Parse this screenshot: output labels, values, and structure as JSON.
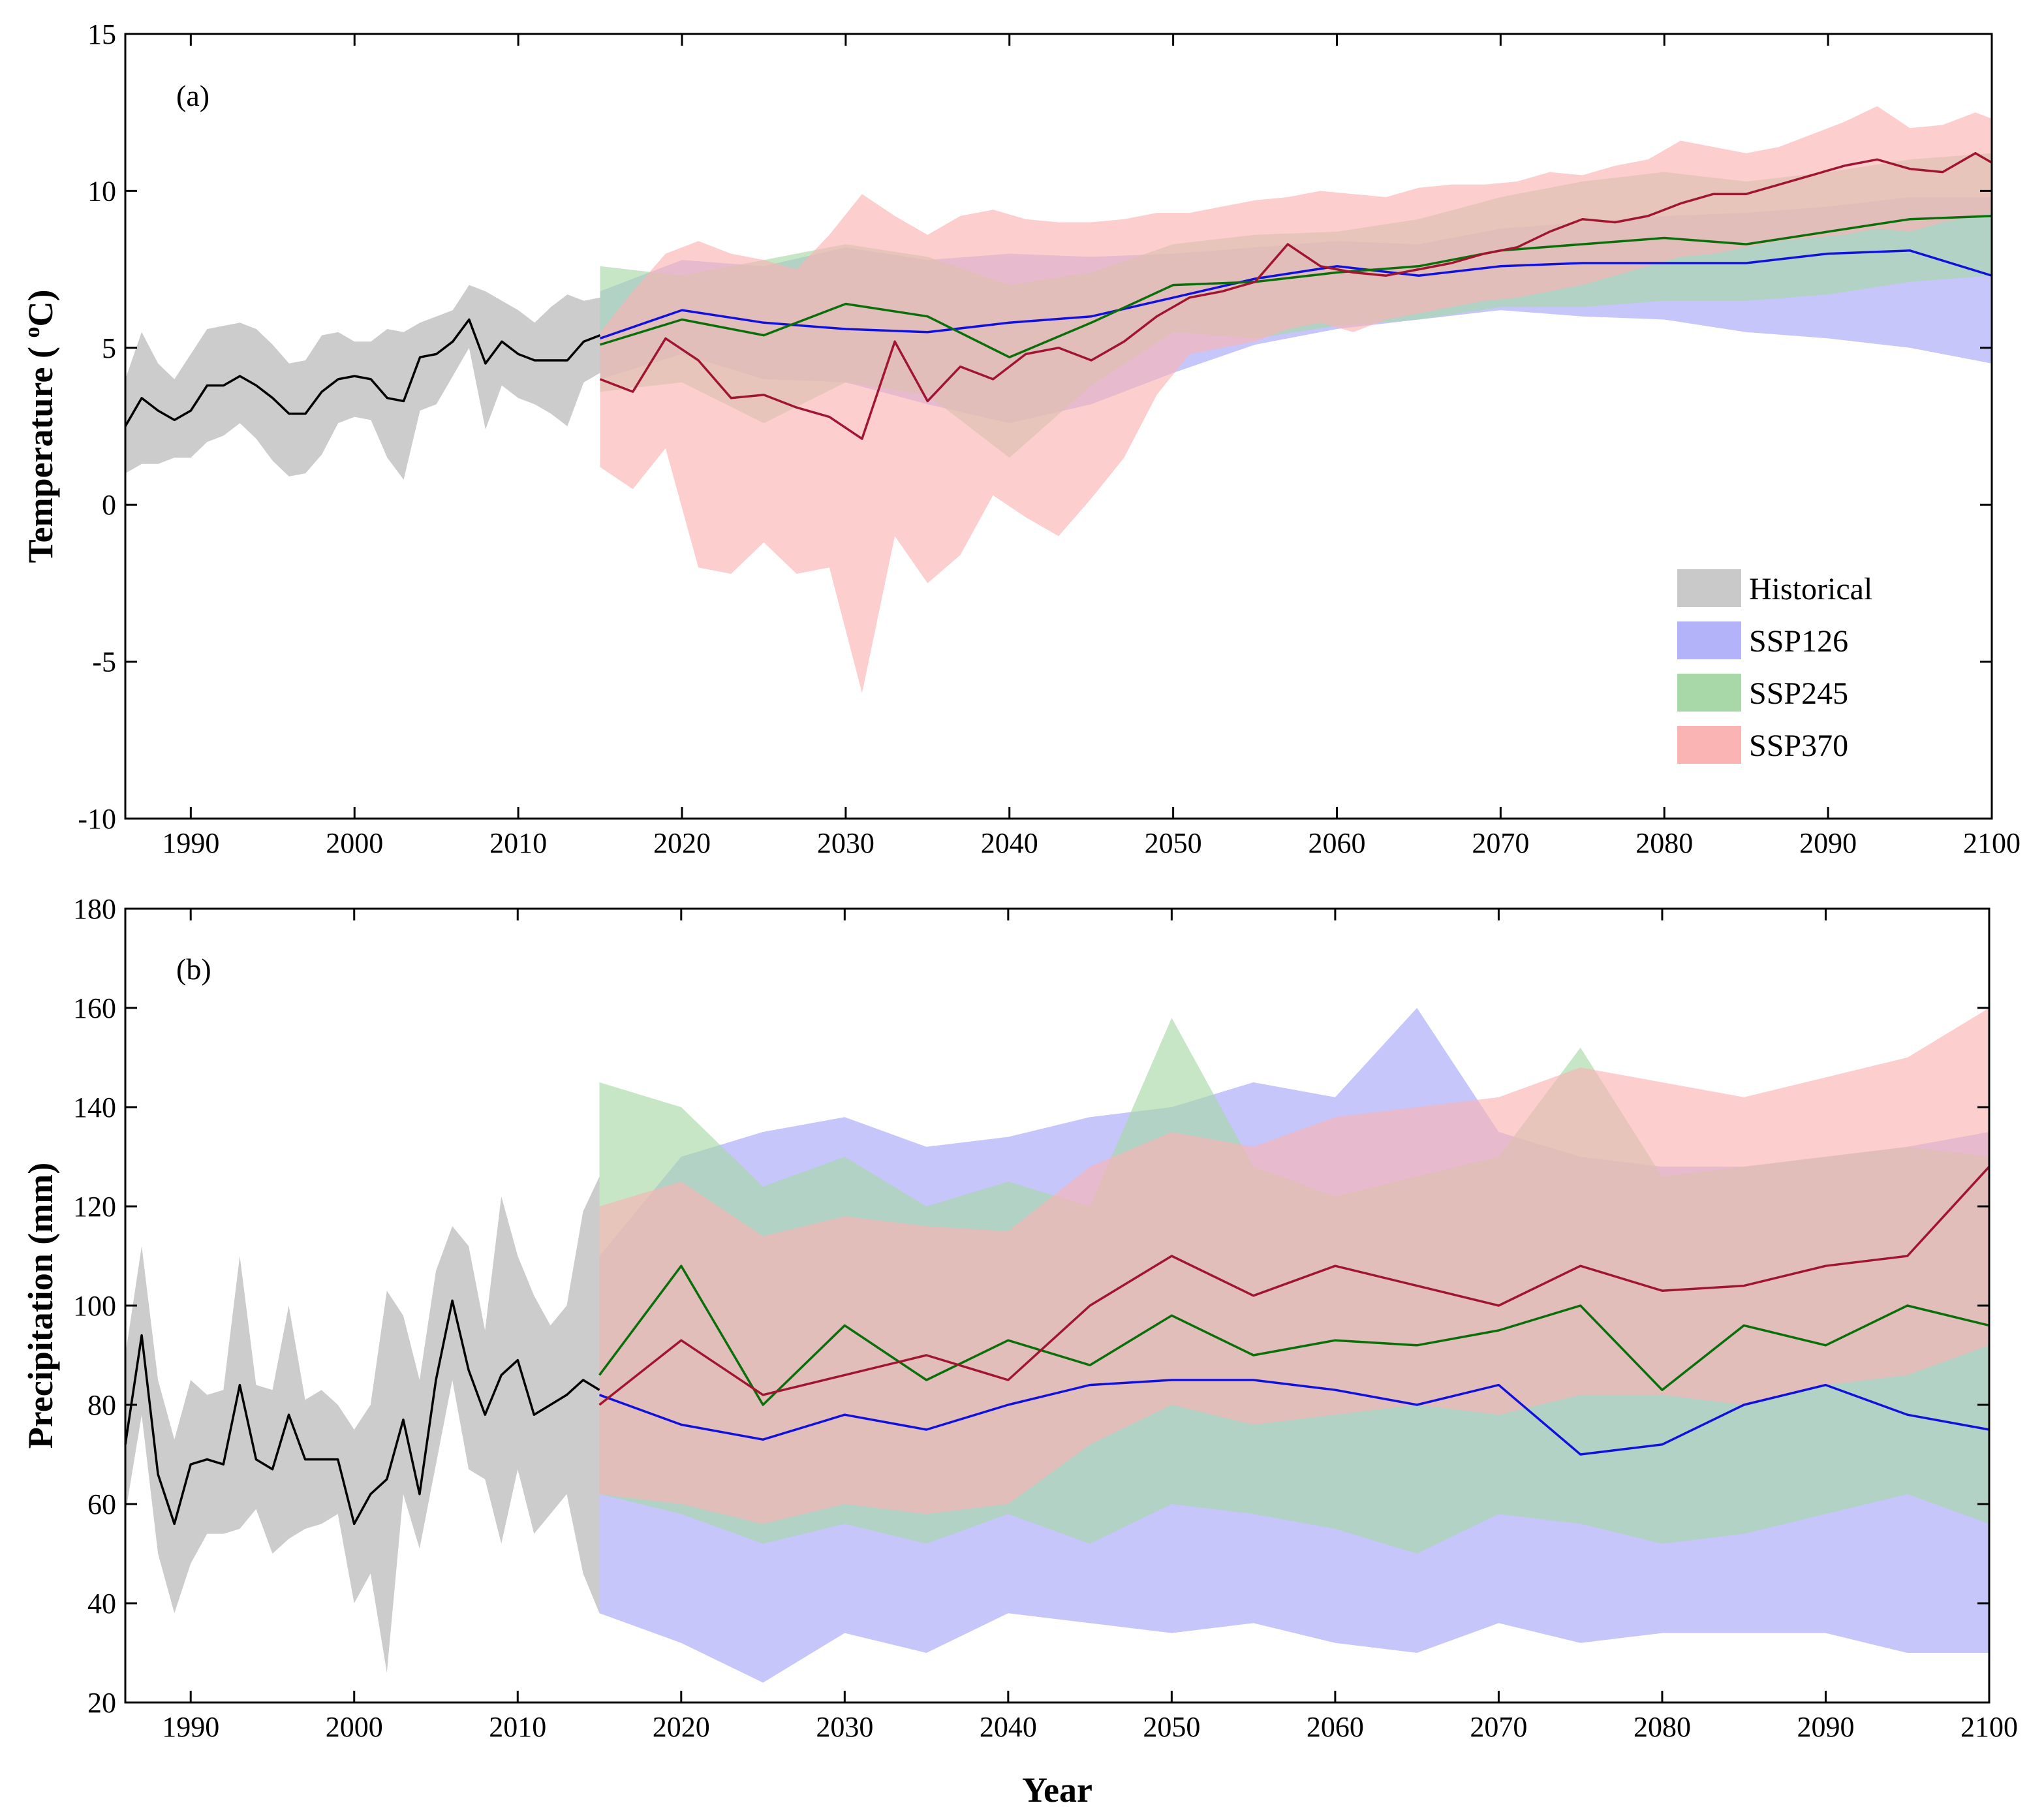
{
  "colors": {
    "hist_band": "#c9c9c9",
    "hist_line": "#000000",
    "ssp126_band": "#b3b3fa",
    "ssp126_line": "#1010e0",
    "ssp245_band": "#a8d8a8",
    "ssp245_line": "#0a6e0a",
    "ssp370_band": "#fbb4b4",
    "ssp370_line": "#a01530"
  },
  "chart_data": [
    {
      "type": "area",
      "panel_label": "(a)",
      "ylabel_main": "Temperature ( ",
      "ylabel_sup": "o",
      "ylabel_unit": "C)",
      "xlabel": "",
      "xlim": [
        1986,
        2100
      ],
      "ylim": [
        -10,
        15
      ],
      "xticks": [
        "1990",
        "2000",
        "2010",
        "2020",
        "2030",
        "2040",
        "2050",
        "2060",
        "2070",
        "2080",
        "2090",
        "2100"
      ],
      "yticks": [
        "15",
        "10",
        "5",
        "0",
        "-5",
        "-10"
      ],
      "legend": {
        "position": "bottom-right",
        "entries": [
          "Historical",
          "SSP126",
          "SSP245",
          "SSP370"
        ]
      },
      "series": [
        {
          "name": "Historical",
          "x": [
            1986,
            1987,
            1988,
            1989,
            1990,
            1991,
            1992,
            1993,
            1994,
            1995,
            1996,
            1997,
            1998,
            1999,
            2000,
            2001,
            2002,
            2003,
            2004,
            2005,
            2006,
            2007,
            2008,
            2009,
            2010,
            2011,
            2012,
            2013,
            2014,
            2015
          ],
          "mean": [
            2.5,
            3.4,
            3.0,
            2.7,
            3.0,
            3.8,
            3.8,
            4.1,
            3.8,
            3.4,
            2.9,
            2.9,
            3.6,
            4.0,
            4.1,
            4.0,
            3.4,
            3.3,
            4.7,
            4.8,
            5.2,
            5.9,
            4.5,
            5.2,
            4.8,
            4.6,
            4.6,
            4.6,
            5.2,
            5.4
          ],
          "upper": [
            4.0,
            5.5,
            4.5,
            4.0,
            4.8,
            5.6,
            5.7,
            5.8,
            5.6,
            5.1,
            4.5,
            4.6,
            5.4,
            5.5,
            5.2,
            5.2,
            5.6,
            5.5,
            5.8,
            6.0,
            6.2,
            7.0,
            6.8,
            6.5,
            6.2,
            5.8,
            6.3,
            6.7,
            6.5,
            6.6
          ],
          "lower": [
            1.0,
            1.3,
            1.3,
            1.5,
            1.5,
            2.0,
            2.2,
            2.6,
            2.1,
            1.4,
            0.9,
            1.0,
            1.6,
            2.6,
            2.8,
            2.7,
            1.5,
            0.8,
            3.0,
            3.2,
            4.1,
            5.0,
            2.4,
            3.8,
            3.4,
            3.2,
            2.9,
            2.5,
            3.9,
            4.2
          ]
        },
        {
          "name": "SSP126",
          "x": [
            2015,
            2020,
            2025,
            2030,
            2035,
            2040,
            2045,
            2050,
            2055,
            2060,
            2065,
            2070,
            2075,
            2080,
            2085,
            2090,
            2095,
            2100
          ],
          "mean": [
            5.3,
            6.2,
            5.8,
            5.6,
            5.5,
            5.8,
            6.0,
            6.6,
            7.2,
            7.6,
            7.3,
            7.6,
            7.7,
            7.7,
            7.7,
            8.0,
            8.1,
            7.3
          ],
          "upper": [
            6.8,
            7.8,
            7.6,
            8.2,
            7.8,
            8.0,
            7.9,
            8.0,
            8.2,
            8.4,
            8.3,
            8.8,
            9.0,
            9.2,
            9.3,
            9.5,
            9.8,
            9.8
          ],
          "lower": [
            4.0,
            4.8,
            4.0,
            3.9,
            3.2,
            2.6,
            3.2,
            4.2,
            5.1,
            5.6,
            5.9,
            6.2,
            6.0,
            5.9,
            5.5,
            5.3,
            5.0,
            4.5
          ]
        },
        {
          "name": "SSP245",
          "x": [
            2015,
            2020,
            2025,
            2030,
            2035,
            2040,
            2045,
            2050,
            2055,
            2060,
            2065,
            2070,
            2075,
            2080,
            2085,
            2090,
            2095,
            2100
          ],
          "mean": [
            5.1,
            5.9,
            5.4,
            6.4,
            6.0,
            4.7,
            5.8,
            7.0,
            7.1,
            7.4,
            7.6,
            8.1,
            8.3,
            8.5,
            8.3,
            8.7,
            9.1,
            9.2
          ],
          "upper": [
            7.6,
            7.3,
            7.8,
            8.3,
            7.9,
            7.0,
            7.4,
            8.3,
            8.6,
            8.7,
            9.1,
            9.8,
            10.3,
            10.6,
            10.3,
            10.6,
            11.0,
            11.2
          ],
          "lower": [
            3.6,
            3.9,
            2.6,
            3.9,
            3.5,
            1.5,
            3.8,
            5.5,
            5.3,
            5.7,
            5.9,
            6.3,
            6.3,
            6.5,
            6.5,
            6.7,
            7.1,
            7.3
          ]
        },
        {
          "name": "SSP370",
          "x": [
            2015,
            2017,
            2019,
            2021,
            2023,
            2025,
            2027,
            2029,
            2031,
            2033,
            2035,
            2037,
            2039,
            2041,
            2043,
            2045,
            2047,
            2049,
            2051,
            2053,
            2055,
            2057,
            2059,
            2061,
            2063,
            2065,
            2067,
            2069,
            2071,
            2073,
            2075,
            2077,
            2079,
            2081,
            2083,
            2085,
            2087,
            2089,
            2091,
            2093,
            2095,
            2097,
            2099,
            2100
          ],
          "mean": [
            4.0,
            3.6,
            5.3,
            4.6,
            3.4,
            3.5,
            3.1,
            2.8,
            2.1,
            5.2,
            3.3,
            4.4,
            4.0,
            4.8,
            5.0,
            4.6,
            5.2,
            6.0,
            6.6,
            6.8,
            7.1,
            8.3,
            7.6,
            7.4,
            7.3,
            7.5,
            7.7,
            8.0,
            8.2,
            8.7,
            9.1,
            9.0,
            9.2,
            9.6,
            9.9,
            9.9,
            10.2,
            10.5,
            10.8,
            11.0,
            10.7,
            10.6,
            11.2,
            10.9
          ],
          "upper": [
            5.5,
            6.8,
            8.0,
            8.4,
            8.0,
            7.8,
            7.5,
            8.6,
            9.9,
            9.2,
            8.6,
            9.2,
            9.4,
            9.1,
            9.0,
            9.0,
            9.1,
            9.3,
            9.3,
            9.5,
            9.7,
            9.8,
            10.0,
            9.9,
            9.8,
            10.1,
            10.2,
            10.2,
            10.3,
            10.6,
            10.5,
            10.8,
            11.0,
            11.6,
            11.4,
            11.2,
            11.4,
            11.8,
            12.2,
            12.7,
            12.0,
            12.1,
            12.5,
            12.3
          ],
          "lower": [
            1.2,
            0.5,
            1.8,
            -2.0,
            -2.2,
            -1.2,
            -2.2,
            -2.0,
            -6.0,
            -1.0,
            -2.5,
            -1.6,
            0.3,
            -0.4,
            -1.0,
            0.2,
            1.5,
            3.5,
            4.8,
            5.0,
            5.2,
            5.6,
            5.8,
            5.5,
            5.9,
            6.1,
            6.3,
            6.5,
            6.6,
            6.8,
            7.0,
            7.3,
            7.6,
            7.9,
            8.0,
            8.2,
            8.4,
            8.5,
            8.6,
            8.8,
            8.7,
            9.0,
            9.2,
            9.3
          ]
        }
      ]
    },
    {
      "type": "area",
      "panel_label": "(b)",
      "ylabel": "Precipitation (mm)",
      "xlabel": "Year",
      "xlim": [
        1986,
        2100
      ],
      "ylim": [
        20,
        180
      ],
      "xticks": [
        "1990",
        "2000",
        "2010",
        "2020",
        "2030",
        "2040",
        "2050",
        "2060",
        "2070",
        "2080",
        "2090",
        "2100"
      ],
      "yticks": [
        "180",
        "160",
        "140",
        "120",
        "100",
        "80",
        "60",
        "40",
        "20"
      ],
      "series": [
        {
          "name": "Historical",
          "x": [
            1986,
            1987,
            1988,
            1989,
            1990,
            1991,
            1992,
            1993,
            1994,
            1995,
            1996,
            1997,
            1998,
            1999,
            2000,
            2001,
            2002,
            2003,
            2004,
            2005,
            2006,
            2007,
            2008,
            2009,
            2010,
            2011,
            2012,
            2013,
            2014,
            2015
          ],
          "mean": [
            72,
            94,
            66,
            56,
            68,
            69,
            68,
            84,
            69,
            67,
            78,
            69,
            69,
            69,
            56,
            62,
            65,
            77,
            62,
            85,
            101,
            87,
            78,
            86,
            89,
            78,
            80,
            82,
            85,
            83
          ],
          "upper": [
            90,
            112,
            85,
            73,
            85,
            82,
            83,
            110,
            84,
            83,
            100,
            81,
            83,
            80,
            75,
            80,
            103,
            98,
            85,
            107,
            116,
            112,
            95,
            122,
            110,
            102,
            96,
            100,
            119,
            126
          ],
          "lower": [
            58,
            78,
            50,
            38,
            48,
            54,
            54,
            55,
            59,
            50,
            53,
            55,
            56,
            58,
            40,
            46,
            26,
            62,
            51,
            68,
            85,
            67,
            65,
            52,
            67,
            54,
            58,
            62,
            46,
            38
          ]
        },
        {
          "name": "SSP126",
          "x": [
            2015,
            2020,
            2025,
            2030,
            2035,
            2040,
            2045,
            2050,
            2055,
            2060,
            2065,
            2070,
            2075,
            2080,
            2085,
            2090,
            2095,
            2100
          ],
          "mean": [
            82,
            76,
            73,
            78,
            75,
            80,
            84,
            85,
            85,
            83,
            80,
            84,
            70,
            72,
            80,
            84,
            78,
            75
          ],
          "upper": [
            110,
            130,
            135,
            138,
            132,
            134,
            138,
            140,
            145,
            142,
            160,
            135,
            130,
            128,
            128,
            130,
            132,
            135
          ],
          "lower": [
            38,
            32,
            24,
            34,
            30,
            38,
            36,
            34,
            36,
            32,
            30,
            36,
            32,
            34,
            34,
            34,
            30,
            30
          ]
        },
        {
          "name": "SSP245",
          "x": [
            2015,
            2020,
            2025,
            2030,
            2035,
            2040,
            2045,
            2050,
            2055,
            2060,
            2065,
            2070,
            2075,
            2080,
            2085,
            2090,
            2095,
            2100
          ],
          "mean": [
            86,
            108,
            80,
            96,
            85,
            93,
            88,
            98,
            90,
            93,
            92,
            95,
            100,
            83,
            96,
            92,
            100,
            96
          ],
          "upper": [
            145,
            140,
            124,
            130,
            120,
            125,
            120,
            158,
            128,
            122,
            126,
            130,
            152,
            126,
            128,
            130,
            132,
            130
          ],
          "lower": [
            62,
            58,
            52,
            56,
            52,
            58,
            52,
            60,
            58,
            55,
            50,
            58,
            56,
            52,
            54,
            58,
            62,
            56
          ]
        },
        {
          "name": "SSP370",
          "x": [
            2015,
            2020,
            2025,
            2030,
            2035,
            2040,
            2045,
            2050,
            2055,
            2060,
            2065,
            2070,
            2075,
            2080,
            2085,
            2090,
            2095,
            2100
          ],
          "mean": [
            80,
            93,
            82,
            86,
            90,
            85,
            100,
            110,
            102,
            108,
            104,
            100,
            108,
            103,
            104,
            108,
            110,
            128
          ],
          "upper": [
            120,
            125,
            114,
            118,
            116,
            115,
            128,
            135,
            132,
            138,
            140,
            142,
            148,
            145,
            142,
            146,
            150,
            160
          ],
          "lower": [
            62,
            60,
            56,
            60,
            58,
            60,
            72,
            80,
            76,
            78,
            80,
            78,
            82,
            82,
            80,
            84,
            86,
            92
          ]
        }
      ]
    }
  ]
}
